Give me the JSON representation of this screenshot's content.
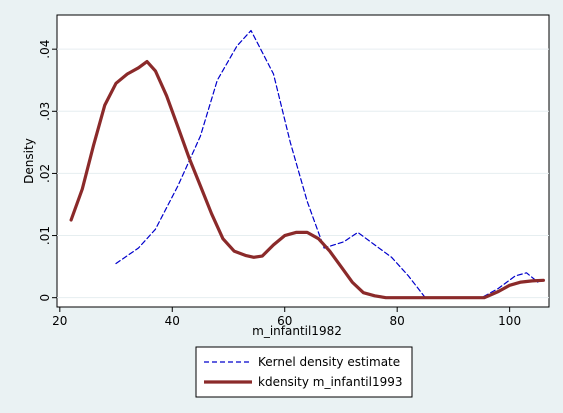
{
  "chart_data": {
    "type": "line",
    "title": "",
    "xlabel": "m_infantil1982",
    "ylabel": "Density",
    "xlim": [
      19.5,
      107
    ],
    "ylim": [
      -0.0015,
      0.0455
    ],
    "x_ticks": [
      20,
      40,
      60,
      80,
      100
    ],
    "x_tick_labels": [
      "20",
      "40",
      "60",
      "80",
      "100"
    ],
    "y_ticks": [
      0,
      0.01,
      0.02,
      0.03,
      0.04
    ],
    "y_tick_labels": [
      "0",
      ".01",
      ".02",
      ".03",
      ".04"
    ],
    "grid": "horizontal",
    "legend_position": "bottom",
    "series": [
      {
        "name": "Kernel density estimate",
        "color": "#0000cc",
        "style": "dashed",
        "x": [
          30,
          34,
          37,
          41,
          45,
          48,
          51.5,
          54,
          58,
          61,
          64,
          67,
          70.5,
          73,
          76,
          79,
          82,
          85,
          88,
          91.5,
          95,
          98,
          101,
          103,
          105
        ],
        "y": [
          0.0055,
          0.008,
          0.011,
          0.018,
          0.026,
          0.035,
          0.0405,
          0.043,
          0.036,
          0.025,
          0.0155,
          0.008,
          0.009,
          0.0105,
          0.0085,
          0.0065,
          0.0035,
          0.0,
          0.0,
          0.0,
          0.0,
          0.0015,
          0.0035,
          0.004,
          0.0025
        ]
      },
      {
        "name": "kdensity m_infantil1993",
        "color": "#8b2a2a",
        "style": "solid",
        "x": [
          22,
          24,
          26,
          28,
          30,
          32,
          34,
          35.5,
          37,
          39,
          41,
          43,
          45,
          47,
          49,
          51,
          53,
          54.5,
          56,
          58,
          60,
          62,
          64,
          66,
          68,
          70,
          72,
          74,
          76,
          78,
          80,
          84,
          88,
          92,
          95.5,
          98,
          100,
          102,
          104,
          106
        ],
        "y": [
          0.0125,
          0.0175,
          0.0245,
          0.031,
          0.0345,
          0.036,
          0.037,
          0.038,
          0.0365,
          0.0325,
          0.0275,
          0.0225,
          0.018,
          0.0135,
          0.0095,
          0.0075,
          0.0068,
          0.0065,
          0.0067,
          0.0085,
          0.01,
          0.0105,
          0.0105,
          0.0095,
          0.0075,
          0.005,
          0.0025,
          0.0008,
          0.0003,
          0.0,
          0.0,
          0.0,
          0.0,
          0.0,
          0.0,
          0.001,
          0.002,
          0.0025,
          0.0027,
          0.0028
        ]
      }
    ]
  }
}
